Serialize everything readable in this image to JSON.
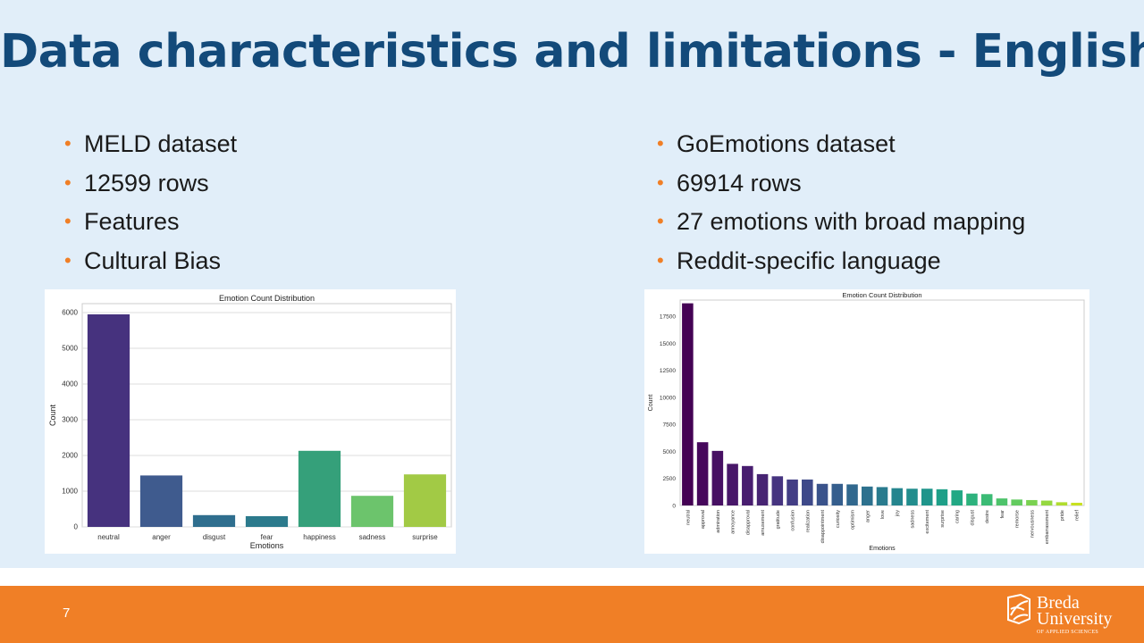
{
  "slide": {
    "title": "Data characteristics and limitations - English",
    "page_number": "7",
    "bullet_glyph": "•"
  },
  "left_bullets": [
    "MELD dataset",
    "12599 rows",
    "Features",
    "Cultural Bias"
  ],
  "right_bullets": [
    "GoEmotions dataset",
    "69914 rows",
    "27 emotions with broad mapping",
    "Reddit-specific language"
  ],
  "logo": {
    "line1": "Breda",
    "line2": "University",
    "line3": "OF APPLIED SCIENCES",
    "icon": "breda-university-logo-icon"
  },
  "colors": {
    "title": "#134a7a",
    "accent": "#f07f26",
    "background": "#e1eef9"
  },
  "chart_data": [
    {
      "type": "bar",
      "title": "Emotion Count Distribution",
      "xlabel": "Emotions",
      "ylabel": "Count",
      "ylim": [
        0,
        6250
      ],
      "yticks": [
        0,
        1000,
        2000,
        3000,
        4000,
        5000,
        6000
      ],
      "grid": true,
      "categories": [
        "neutral",
        "anger",
        "disgust",
        "fear",
        "happiness",
        "sadness",
        "surprise"
      ],
      "values": [
        5950,
        1440,
        330,
        300,
        2130,
        870,
        1470
      ],
      "colors": [
        "#46327e",
        "#3f5b8e",
        "#2f6e8e",
        "#2c7a8c",
        "#35a07a",
        "#6cc46c",
        "#a2ca45"
      ]
    },
    {
      "type": "bar",
      "title": "Emotion Count Distribution",
      "xlabel": "Emotions",
      "ylabel": "Count",
      "ylim": [
        0,
        19000
      ],
      "yticks": [
        0,
        2500,
        5000,
        7500,
        10000,
        12500,
        15000,
        17500
      ],
      "grid": false,
      "categories": [
        "neutral",
        "approval",
        "admiration",
        "annoyance",
        "disapproval",
        "amusement",
        "gratitude",
        "confusion",
        "realization",
        "disappointment",
        "curiosity",
        "optimism",
        "anger",
        "love",
        "joy",
        "sadness",
        "excitement",
        "surprise",
        "caring",
        "disgust",
        "desire",
        "fear",
        "remorse",
        "nervousness",
        "embarrassment",
        "pride",
        "relief"
      ],
      "values": [
        18700,
        5850,
        5050,
        3850,
        3650,
        2900,
        2700,
        2400,
        2400,
        2000,
        2000,
        1950,
        1750,
        1700,
        1600,
        1550,
        1550,
        1500,
        1400,
        1100,
        1050,
        650,
        550,
        500,
        450,
        300,
        250
      ],
      "colors": [
        "#440154",
        "#46085c",
        "#471063",
        "#481769",
        "#481d6f",
        "#472473",
        "#463480",
        "#433e85",
        "#3e4989",
        "#3a538b",
        "#355e8d",
        "#31688e",
        "#2d718e",
        "#297b8e",
        "#25858e",
        "#228d8d",
        "#1f958b",
        "#1e9f88",
        "#22a884",
        "#2db27d",
        "#3bbb75",
        "#4ec36b",
        "#63cb5f",
        "#7ad151",
        "#95d840",
        "#b0dd2f",
        "#c8e020"
      ]
    }
  ]
}
